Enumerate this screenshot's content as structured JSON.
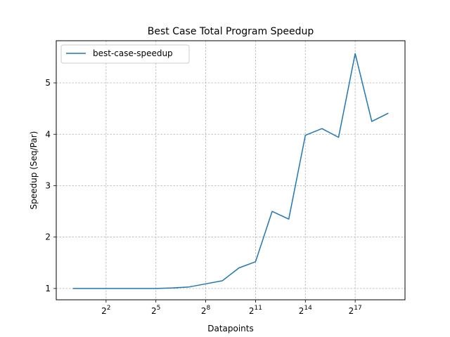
{
  "chart_data": {
    "type": "line",
    "title": "Best Case Total Program Speedup",
    "xlabel": "Datapoints",
    "ylabel": "Speedup (Seq/Par)",
    "x_scale": "log2",
    "x_exponents": [
      0,
      1,
      2,
      3,
      4,
      5,
      6,
      7,
      8,
      9,
      10,
      11,
      12,
      13,
      14,
      15,
      16,
      17,
      18,
      19
    ],
    "xticks": [
      {
        "base": "2",
        "exp": "2",
        "value": 4
      },
      {
        "base": "2",
        "exp": "5",
        "value": 32
      },
      {
        "base": "2",
        "exp": "8",
        "value": 256
      },
      {
        "base": "2",
        "exp": "11",
        "value": 2048
      },
      {
        "base": "2",
        "exp": "14",
        "value": 16384
      },
      {
        "base": "2",
        "exp": "17",
        "value": 131072
      }
    ],
    "yticks": [
      "1",
      "2",
      "3",
      "4",
      "5"
    ],
    "ylim": [
      0.78,
      5.82
    ],
    "grid": true,
    "legend_position": "top-left",
    "series": [
      {
        "name": "best-case-speedup",
        "color": "#1f77b4",
        "values": [
          1.0,
          1.0,
          1.0,
          1.0,
          1.0,
          1.0,
          1.01,
          1.03,
          1.09,
          1.15,
          1.4,
          1.52,
          2.5,
          2.35,
          3.98,
          4.11,
          3.94,
          5.57,
          4.25,
          4.41
        ]
      }
    ]
  }
}
